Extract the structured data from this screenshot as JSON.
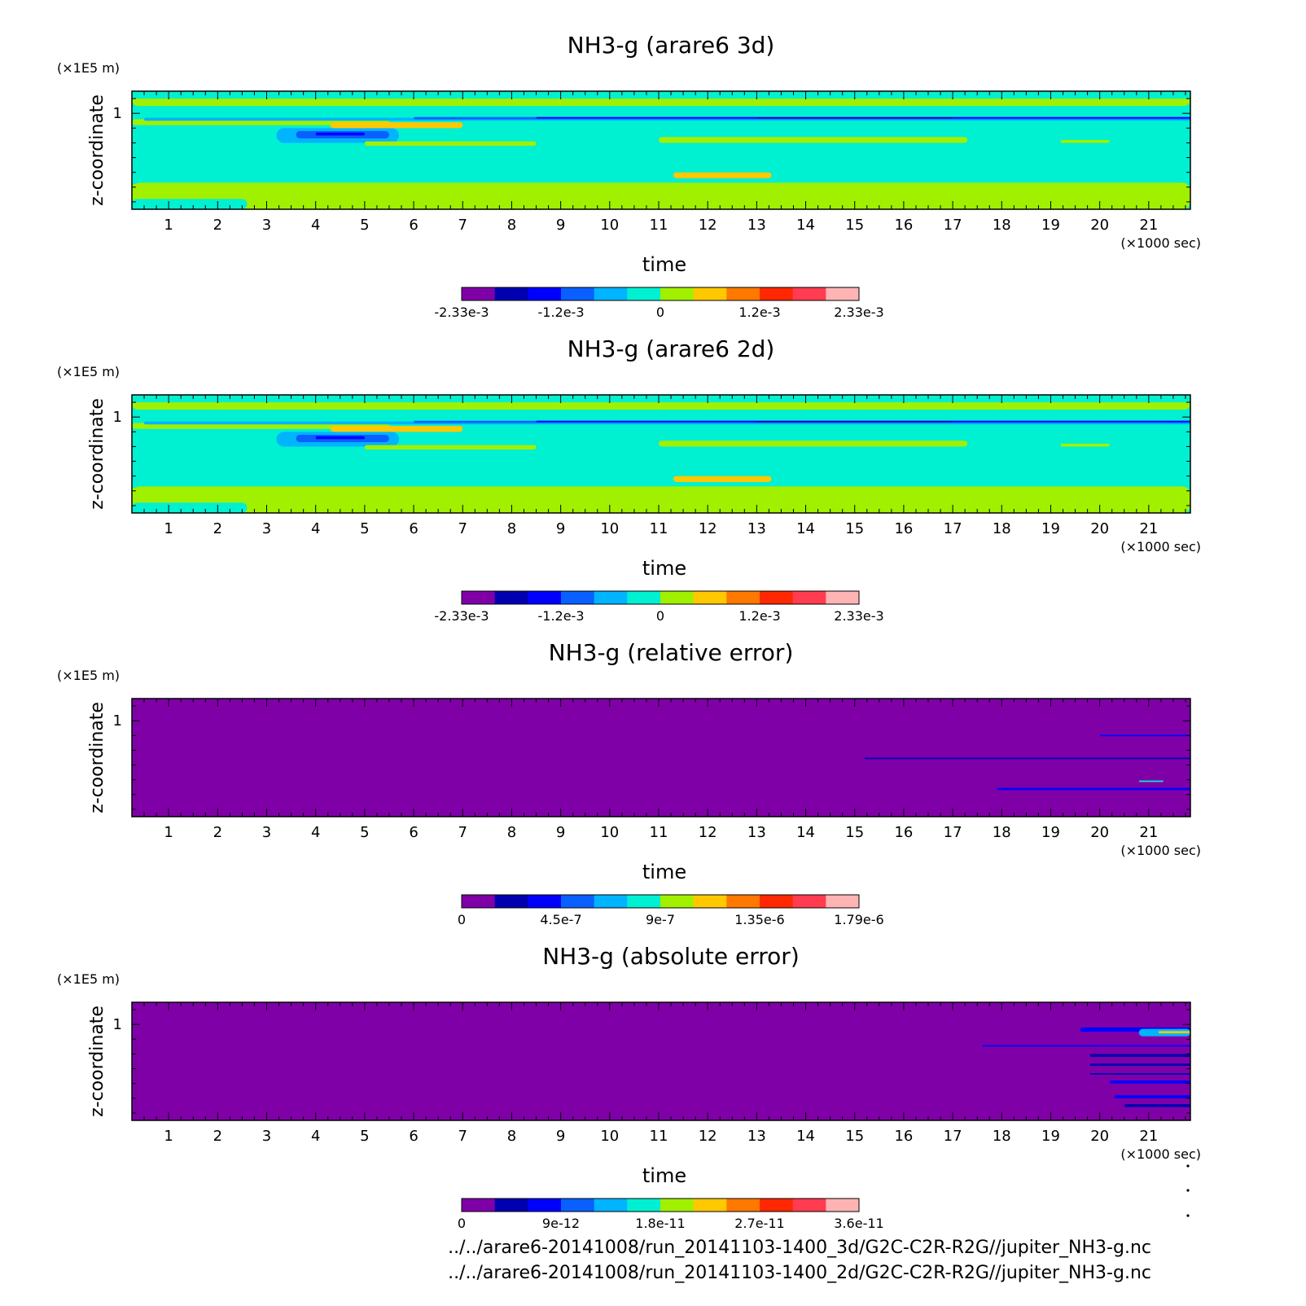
{
  "colors": {
    "ramp": [
      "#8000a8",
      "#0000b0",
      "#0000ff",
      "#0a60ff",
      "#00b4ff",
      "#00f0d2",
      "#a0f000",
      "#ffc800",
      "#ff7800",
      "#ff2800",
      "#ff3c50",
      "#ffb4b4"
    ],
    "frame": "#000000"
  },
  "chart_data": [
    {
      "type": "heatmap",
      "title": "NH3-g (arare6 3d)",
      "xlabel": "time",
      "x_unit": "(×1000 sec)",
      "ylabel": "z-coordinate",
      "y_unit": "(×1E5 m)",
      "xlim": [
        0.25,
        21.85
      ],
      "ylim": [
        0.35,
        1.15
      ],
      "xticks": [
        1,
        2,
        3,
        4,
        5,
        6,
        7,
        8,
        9,
        10,
        11,
        12,
        13,
        14,
        15,
        16,
        17,
        18,
        19,
        20,
        21
      ],
      "yticks": [
        1
      ],
      "colorbar_labels": [
        [
          "-2.33e-3",
          0
        ],
        [
          "-1.2e-3",
          3
        ],
        [
          "0",
          6
        ],
        [
          "1.2e-3",
          9
        ],
        [
          "2.33e-3",
          12
        ]
      ],
      "background_level": 5,
      "features": [
        {
          "level": 6,
          "x": [
            0.25,
            21.85
          ],
          "y": [
            0.35,
            0.53
          ]
        },
        {
          "level": 5,
          "x": [
            0.25,
            2.6
          ],
          "y": [
            0.35,
            0.42
          ]
        },
        {
          "level": 6,
          "x": [
            0.25,
            2.6
          ],
          "y": [
            0.45,
            0.48
          ]
        },
        {
          "level": 6,
          "x": [
            0.25,
            2.6
          ],
          "y": [
            0.5,
            0.52
          ]
        },
        {
          "level": 5,
          "x": [
            0.25,
            7.5
          ],
          "y": [
            0.55,
            0.57
          ]
        },
        {
          "level": 6,
          "x": [
            0.25,
            21.85
          ],
          "y": [
            1.05,
            1.13
          ]
        },
        {
          "level": 5,
          "x": [
            0.25,
            21.85
          ],
          "y": [
            1.1,
            1.13
          ]
        },
        {
          "level": 6,
          "x": [
            0.25,
            5.5
          ],
          "y": [
            0.92,
            0.96
          ]
        },
        {
          "level": 4,
          "x": [
            0.5,
            21.85
          ],
          "y": [
            0.95,
            0.97
          ]
        },
        {
          "level": 3,
          "x": [
            6.0,
            21.85
          ],
          "y": [
            0.96,
            0.975
          ]
        },
        {
          "level": 2,
          "x": [
            8.5,
            21.85
          ],
          "y": [
            0.965,
            0.975
          ]
        },
        {
          "level": 1,
          "x": [
            13.0,
            17.0
          ],
          "y": [
            0.966,
            0.973
          ]
        },
        {
          "level": 4,
          "x": [
            3.2,
            5.7
          ],
          "y": [
            0.8,
            0.9
          ]
        },
        {
          "level": 3,
          "x": [
            3.6,
            5.5
          ],
          "y": [
            0.83,
            0.88
          ]
        },
        {
          "level": 2,
          "x": [
            4.0,
            5.0
          ],
          "y": [
            0.85,
            0.87
          ]
        },
        {
          "level": 7,
          "x": [
            4.3,
            7.0
          ],
          "y": [
            0.9,
            0.94
          ]
        },
        {
          "level": 6,
          "x": [
            5.0,
            8.5
          ],
          "y": [
            0.78,
            0.81
          ]
        },
        {
          "level": 6,
          "x": [
            11.0,
            17.3
          ],
          "y": [
            0.8,
            0.84
          ]
        },
        {
          "level": 6,
          "x": [
            19.2,
            20.2
          ],
          "y": [
            0.8,
            0.82
          ]
        },
        {
          "level": 7,
          "x": [
            11.3,
            13.3
          ],
          "y": [
            0.56,
            0.6
          ]
        }
      ]
    },
    {
      "type": "heatmap",
      "title": "NH3-g (arare6 2d)",
      "xlabel": "time",
      "x_unit": "(×1000 sec)",
      "ylabel": "z-coordinate",
      "y_unit": "(×1E5 m)",
      "xlim": [
        0.25,
        21.85
      ],
      "ylim": [
        0.35,
        1.15
      ],
      "xticks": [
        1,
        2,
        3,
        4,
        5,
        6,
        7,
        8,
        9,
        10,
        11,
        12,
        13,
        14,
        15,
        16,
        17,
        18,
        19,
        20,
        21
      ],
      "yticks": [
        1
      ],
      "colorbar_labels": [
        [
          "-2.33e-3",
          0
        ],
        [
          "-1.2e-3",
          3
        ],
        [
          "0",
          6
        ],
        [
          "1.2e-3",
          9
        ],
        [
          "2.33e-3",
          12
        ]
      ],
      "background_level": 5,
      "features": [
        {
          "level": 6,
          "x": [
            0.25,
            21.85
          ],
          "y": [
            0.35,
            0.53
          ]
        },
        {
          "level": 5,
          "x": [
            0.25,
            2.6
          ],
          "y": [
            0.35,
            0.42
          ]
        },
        {
          "level": 6,
          "x": [
            0.25,
            2.6
          ],
          "y": [
            0.45,
            0.48
          ]
        },
        {
          "level": 6,
          "x": [
            0.25,
            2.6
          ],
          "y": [
            0.5,
            0.52
          ]
        },
        {
          "level": 5,
          "x": [
            0.25,
            7.5
          ],
          "y": [
            0.55,
            0.57
          ]
        },
        {
          "level": 6,
          "x": [
            0.25,
            21.85
          ],
          "y": [
            1.05,
            1.13
          ]
        },
        {
          "level": 5,
          "x": [
            0.25,
            21.85
          ],
          "y": [
            1.1,
            1.13
          ]
        },
        {
          "level": 6,
          "x": [
            0.25,
            5.5
          ],
          "y": [
            0.92,
            0.96
          ]
        },
        {
          "level": 4,
          "x": [
            0.5,
            21.85
          ],
          "y": [
            0.95,
            0.97
          ]
        },
        {
          "level": 3,
          "x": [
            6.0,
            21.85
          ],
          "y": [
            0.96,
            0.975
          ]
        },
        {
          "level": 2,
          "x": [
            8.5,
            21.85
          ],
          "y": [
            0.965,
            0.975
          ]
        },
        {
          "level": 1,
          "x": [
            13.0,
            17.0
          ],
          "y": [
            0.966,
            0.973
          ]
        },
        {
          "level": 4,
          "x": [
            3.2,
            5.7
          ],
          "y": [
            0.8,
            0.9
          ]
        },
        {
          "level": 3,
          "x": [
            3.6,
            5.5
          ],
          "y": [
            0.83,
            0.88
          ]
        },
        {
          "level": 2,
          "x": [
            4.0,
            5.0
          ],
          "y": [
            0.85,
            0.87
          ]
        },
        {
          "level": 7,
          "x": [
            4.3,
            7.0
          ],
          "y": [
            0.9,
            0.94
          ]
        },
        {
          "level": 6,
          "x": [
            5.0,
            8.5
          ],
          "y": [
            0.78,
            0.81
          ]
        },
        {
          "level": 6,
          "x": [
            11.0,
            17.3
          ],
          "y": [
            0.8,
            0.84
          ]
        },
        {
          "level": 6,
          "x": [
            19.2,
            20.2
          ],
          "y": [
            0.8,
            0.82
          ]
        },
        {
          "level": 7,
          "x": [
            11.3,
            13.3
          ],
          "y": [
            0.56,
            0.6
          ]
        }
      ]
    },
    {
      "type": "heatmap",
      "title": "NH3-g (relative error)",
      "xlabel": "time",
      "x_unit": "(×1000 sec)",
      "ylabel": "z-coordinate",
      "y_unit": "(×1E5 m)",
      "xlim": [
        0.25,
        21.85
      ],
      "ylim": [
        0.35,
        1.15
      ],
      "xticks": [
        1,
        2,
        3,
        4,
        5,
        6,
        7,
        8,
        9,
        10,
        11,
        12,
        13,
        14,
        15,
        16,
        17,
        18,
        19,
        20,
        21
      ],
      "yticks": [
        1
      ],
      "colorbar_labels": [
        [
          "0",
          0
        ],
        [
          "4.5e-7",
          3
        ],
        [
          "9e-7",
          6
        ],
        [
          "1.35e-6",
          9
        ],
        [
          "1.79e-6",
          12
        ]
      ],
      "background_level": 0,
      "features": [
        {
          "level": 2,
          "x": [
            20.0,
            21.85
          ],
          "y": [
            0.895,
            0.905
          ]
        },
        {
          "level": 1,
          "x": [
            15.2,
            21.85
          ],
          "y": [
            0.74,
            0.75
          ]
        },
        {
          "level": 2,
          "x": [
            17.9,
            21.85
          ],
          "y": [
            0.53,
            0.545
          ]
        },
        {
          "level": 5,
          "x": [
            20.8,
            21.3
          ],
          "y": [
            0.585,
            0.595
          ]
        }
      ]
    },
    {
      "type": "heatmap",
      "title": "NH3-g (absolute error)",
      "xlabel": "time",
      "x_unit": "(×1000 sec)",
      "ylabel": "z-coordinate",
      "y_unit": "(×1E5 m)",
      "xlim": [
        0.25,
        21.85
      ],
      "ylim": [
        0.35,
        1.15
      ],
      "xticks": [
        1,
        2,
        3,
        4,
        5,
        6,
        7,
        8,
        9,
        10,
        11,
        12,
        13,
        14,
        15,
        16,
        17,
        18,
        19,
        20,
        21
      ],
      "yticks": [
        1
      ],
      "colorbar_labels": [
        [
          "0",
          0
        ],
        [
          "9e-12",
          3
        ],
        [
          "1.8e-11",
          6
        ],
        [
          "2.7e-11",
          9
        ],
        [
          "3.6e-11",
          12
        ]
      ],
      "background_level": 0,
      "features": [
        {
          "level": 2,
          "x": [
            17.6,
            21.85
          ],
          "y": [
            0.85,
            0.86
          ]
        },
        {
          "level": 2,
          "x": [
            19.6,
            21.85
          ],
          "y": [
            0.95,
            0.98
          ]
        },
        {
          "level": 4,
          "x": [
            20.8,
            21.85
          ],
          "y": [
            0.92,
            0.97
          ]
        },
        {
          "level": 7,
          "x": [
            21.2,
            21.85
          ],
          "y": [
            0.94,
            0.955
          ]
        },
        {
          "level": 1,
          "x": [
            19.8,
            21.85
          ],
          "y": [
            0.78,
            0.8
          ]
        },
        {
          "level": 1,
          "x": [
            19.8,
            21.85
          ],
          "y": [
            0.72,
            0.735
          ]
        },
        {
          "level": 1,
          "x": [
            19.8,
            21.85
          ],
          "y": [
            0.66,
            0.67
          ]
        },
        {
          "level": 2,
          "x": [
            20.2,
            21.85
          ],
          "y": [
            0.6,
            0.62
          ]
        },
        {
          "level": 2,
          "x": [
            20.3,
            21.85
          ],
          "y": [
            0.5,
            0.52
          ]
        },
        {
          "level": 1,
          "x": [
            20.5,
            21.85
          ],
          "y": [
            0.44,
            0.46
          ]
        }
      ]
    }
  ],
  "footer": {
    "line1": "../../arare6-20141008/run_20141103-1400_3d/G2C-C2R-R2G//jupiter_NH3-g.nc",
    "line2": "../../arare6-20141008/run_20141103-1400_2d/G2C-C2R-R2G//jupiter_NH3-g.nc"
  }
}
